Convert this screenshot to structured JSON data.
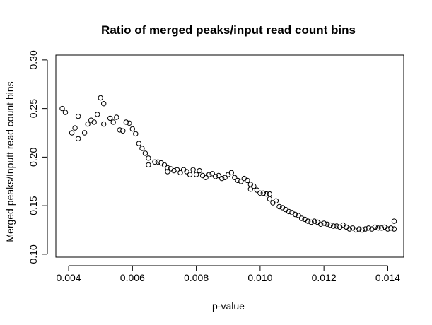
{
  "chart_data": {
    "type": "scatter",
    "title": "Ratio of merged peaks/input read count bins",
    "xlabel": "p-value",
    "ylabel": "Merged peaks/Inputt read count bins",
    "xlim": [
      0.0036,
      0.0145
    ],
    "ylim": [
      0.097,
      0.305
    ],
    "x_ticks": [
      0.004,
      0.006,
      0.008,
      0.01,
      0.012,
      0.014
    ],
    "x_tick_labels": [
      "0.004",
      "0.006",
      "0.008",
      "0.010",
      "0.012",
      "0.014"
    ],
    "y_ticks": [
      0.1,
      0.15,
      0.2,
      0.25,
      0.3
    ],
    "y_tick_labels": [
      "0.10",
      "0.15",
      "0.20",
      "0.25",
      "0.30"
    ],
    "grid": false,
    "marker": "open-circle",
    "colors": {
      "marker_stroke": "#000000",
      "axis": "#000000",
      "background": "#ffffff"
    },
    "points": [
      [
        0.0038,
        0.25
      ],
      [
        0.0039,
        0.246
      ],
      [
        0.0041,
        0.225
      ],
      [
        0.0042,
        0.23
      ],
      [
        0.0043,
        0.242
      ],
      [
        0.0043,
        0.219
      ],
      [
        0.0045,
        0.225
      ],
      [
        0.0046,
        0.234
      ],
      [
        0.0047,
        0.238
      ],
      [
        0.0048,
        0.236
      ],
      [
        0.0049,
        0.244
      ],
      [
        0.005,
        0.261
      ],
      [
        0.0051,
        0.255
      ],
      [
        0.0051,
        0.234
      ],
      [
        0.0053,
        0.24
      ],
      [
        0.0054,
        0.236
      ],
      [
        0.0055,
        0.241
      ],
      [
        0.0056,
        0.228
      ],
      [
        0.0057,
        0.227
      ],
      [
        0.0058,
        0.236
      ],
      [
        0.0059,
        0.235
      ],
      [
        0.006,
        0.229
      ],
      [
        0.0061,
        0.224
      ],
      [
        0.0062,
        0.214
      ],
      [
        0.0063,
        0.209
      ],
      [
        0.0064,
        0.204
      ],
      [
        0.0065,
        0.199
      ],
      [
        0.0065,
        0.192
      ],
      [
        0.0067,
        0.195
      ],
      [
        0.0068,
        0.195
      ],
      [
        0.0069,
        0.194
      ],
      [
        0.007,
        0.192
      ],
      [
        0.0071,
        0.189
      ],
      [
        0.0071,
        0.185
      ],
      [
        0.0072,
        0.188
      ],
      [
        0.0073,
        0.186
      ],
      [
        0.0074,
        0.187
      ],
      [
        0.0075,
        0.184
      ],
      [
        0.0076,
        0.187
      ],
      [
        0.0077,
        0.185
      ],
      [
        0.0078,
        0.182
      ],
      [
        0.0079,
        0.187
      ],
      [
        0.008,
        0.182
      ],
      [
        0.0081,
        0.186
      ],
      [
        0.0082,
        0.181
      ],
      [
        0.0083,
        0.179
      ],
      [
        0.0084,
        0.182
      ],
      [
        0.0085,
        0.183
      ],
      [
        0.0086,
        0.18
      ],
      [
        0.0087,
        0.181
      ],
      [
        0.0088,
        0.178
      ],
      [
        0.0089,
        0.179
      ],
      [
        0.009,
        0.182
      ],
      [
        0.0091,
        0.184
      ],
      [
        0.0092,
        0.179
      ],
      [
        0.0093,
        0.176
      ],
      [
        0.0094,
        0.175
      ],
      [
        0.0095,
        0.178
      ],
      [
        0.0096,
        0.176
      ],
      [
        0.0097,
        0.172
      ],
      [
        0.0097,
        0.167
      ],
      [
        0.0098,
        0.17
      ],
      [
        0.0099,
        0.166
      ],
      [
        0.01,
        0.163
      ],
      [
        0.0101,
        0.163
      ],
      [
        0.0102,
        0.162
      ],
      [
        0.0103,
        0.162
      ],
      [
        0.0103,
        0.157
      ],
      [
        0.0104,
        0.153
      ],
      [
        0.0105,
        0.155
      ],
      [
        0.0106,
        0.149
      ],
      [
        0.0107,
        0.148
      ],
      [
        0.0108,
        0.146
      ],
      [
        0.0109,
        0.144
      ],
      [
        0.011,
        0.143
      ],
      [
        0.0111,
        0.141
      ],
      [
        0.0112,
        0.14
      ],
      [
        0.0113,
        0.137
      ],
      [
        0.0114,
        0.136
      ],
      [
        0.0115,
        0.134
      ],
      [
        0.0116,
        0.133
      ],
      [
        0.0117,
        0.134
      ],
      [
        0.0118,
        0.133
      ],
      [
        0.0119,
        0.131
      ],
      [
        0.012,
        0.132
      ],
      [
        0.0121,
        0.131
      ],
      [
        0.0122,
        0.13
      ],
      [
        0.0123,
        0.129
      ],
      [
        0.0124,
        0.129
      ],
      [
        0.0125,
        0.128
      ],
      [
        0.0126,
        0.13
      ],
      [
        0.0127,
        0.128
      ],
      [
        0.0128,
        0.126
      ],
      [
        0.0129,
        0.127
      ],
      [
        0.013,
        0.125
      ],
      [
        0.0131,
        0.126
      ],
      [
        0.0132,
        0.125
      ],
      [
        0.0133,
        0.126
      ],
      [
        0.0134,
        0.127
      ],
      [
        0.0135,
        0.126
      ],
      [
        0.0136,
        0.128
      ],
      [
        0.0137,
        0.127
      ],
      [
        0.0138,
        0.127
      ],
      [
        0.0139,
        0.128
      ],
      [
        0.014,
        0.126
      ],
      [
        0.0141,
        0.127
      ],
      [
        0.0142,
        0.134
      ],
      [
        0.0142,
        0.126
      ]
    ]
  }
}
